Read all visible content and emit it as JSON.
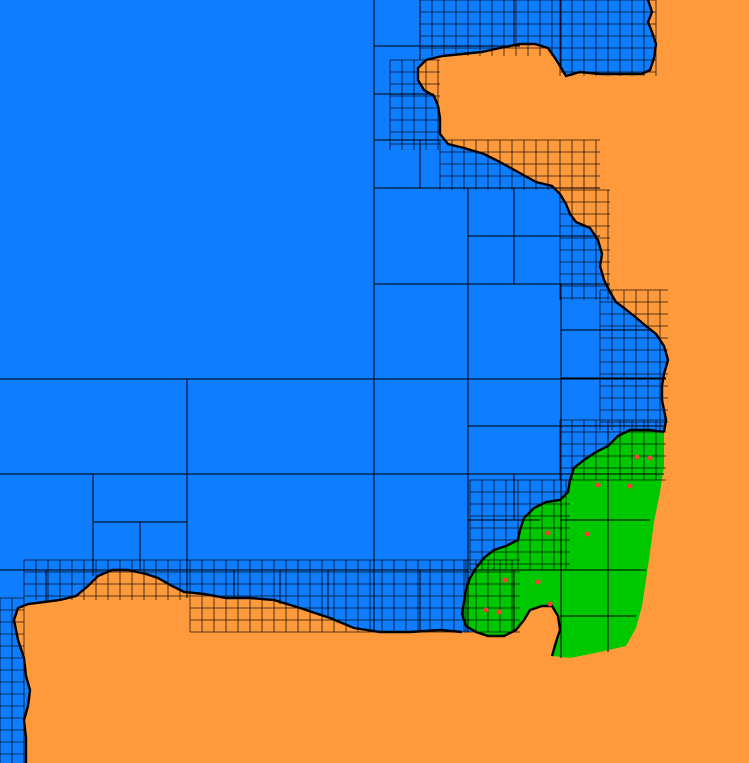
{
  "colors": {
    "land": "#ff9a3c",
    "sea": "#0f7dff",
    "region": "#00c800",
    "grid": "#000000",
    "points": "#ff3b3b"
  },
  "layers": [
    {
      "name": "land-layer",
      "kind": "land"
    },
    {
      "name": "sea-layer",
      "kind": "sea"
    },
    {
      "name": "highlighted-region-layer",
      "kind": "region"
    },
    {
      "name": "quadtree-grid-layer",
      "kind": "grid"
    },
    {
      "name": "sample-points-layer",
      "kind": "points",
      "count": 11
    }
  ]
}
